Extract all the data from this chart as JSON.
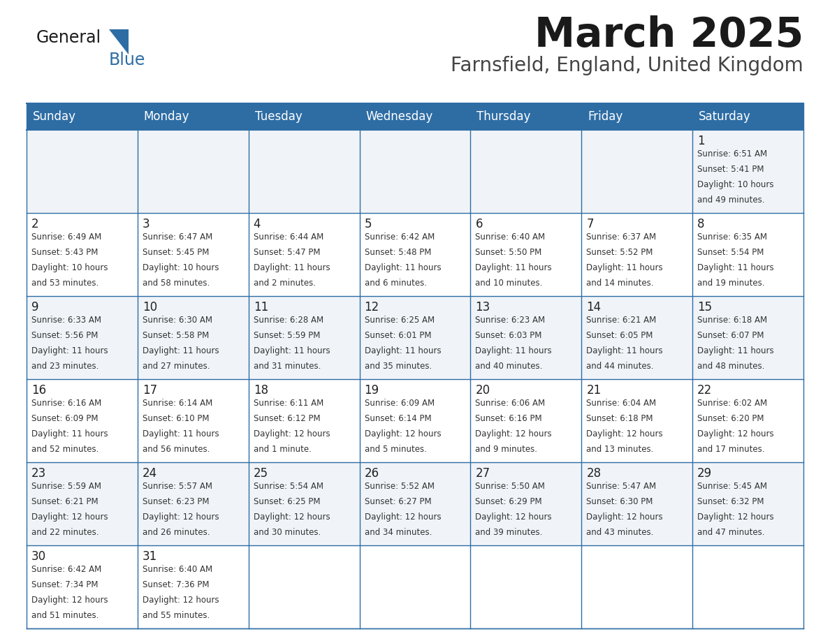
{
  "title": "March 2025",
  "subtitle": "Farnsfield, England, United Kingdom",
  "header_bg": "#2E6DA4",
  "header_text_color": "#FFFFFF",
  "cell_bg_light": "#F0F4F8",
  "cell_bg_white": "#FFFFFF",
  "border_color": "#2E6DA4",
  "day_names": [
    "Sunday",
    "Monday",
    "Tuesday",
    "Wednesday",
    "Thursday",
    "Friday",
    "Saturday"
  ],
  "title_color": "#1a1a1a",
  "subtitle_color": "#444444",
  "number_color": "#222222",
  "info_color": "#333333",
  "calendar": [
    [
      {
        "day": null,
        "sunrise": null,
        "sunset": null,
        "daylight_line1": null,
        "daylight_line2": null
      },
      {
        "day": null,
        "sunrise": null,
        "sunset": null,
        "daylight_line1": null,
        "daylight_line2": null
      },
      {
        "day": null,
        "sunrise": null,
        "sunset": null,
        "daylight_line1": null,
        "daylight_line2": null
      },
      {
        "day": null,
        "sunrise": null,
        "sunset": null,
        "daylight_line1": null,
        "daylight_line2": null
      },
      {
        "day": null,
        "sunrise": null,
        "sunset": null,
        "daylight_line1": null,
        "daylight_line2": null
      },
      {
        "day": null,
        "sunrise": null,
        "sunset": null,
        "daylight_line1": null,
        "daylight_line2": null
      },
      {
        "day": 1,
        "sunrise": "Sunrise: 6:51 AM",
        "sunset": "Sunset: 5:41 PM",
        "daylight_line1": "Daylight: 10 hours",
        "daylight_line2": "and 49 minutes."
      }
    ],
    [
      {
        "day": 2,
        "sunrise": "Sunrise: 6:49 AM",
        "sunset": "Sunset: 5:43 PM",
        "daylight_line1": "Daylight: 10 hours",
        "daylight_line2": "and 53 minutes."
      },
      {
        "day": 3,
        "sunrise": "Sunrise: 6:47 AM",
        "sunset": "Sunset: 5:45 PM",
        "daylight_line1": "Daylight: 10 hours",
        "daylight_line2": "and 58 minutes."
      },
      {
        "day": 4,
        "sunrise": "Sunrise: 6:44 AM",
        "sunset": "Sunset: 5:47 PM",
        "daylight_line1": "Daylight: 11 hours",
        "daylight_line2": "and 2 minutes."
      },
      {
        "day": 5,
        "sunrise": "Sunrise: 6:42 AM",
        "sunset": "Sunset: 5:48 PM",
        "daylight_line1": "Daylight: 11 hours",
        "daylight_line2": "and 6 minutes."
      },
      {
        "day": 6,
        "sunrise": "Sunrise: 6:40 AM",
        "sunset": "Sunset: 5:50 PM",
        "daylight_line1": "Daylight: 11 hours",
        "daylight_line2": "and 10 minutes."
      },
      {
        "day": 7,
        "sunrise": "Sunrise: 6:37 AM",
        "sunset": "Sunset: 5:52 PM",
        "daylight_line1": "Daylight: 11 hours",
        "daylight_line2": "and 14 minutes."
      },
      {
        "day": 8,
        "sunrise": "Sunrise: 6:35 AM",
        "sunset": "Sunset: 5:54 PM",
        "daylight_line1": "Daylight: 11 hours",
        "daylight_line2": "and 19 minutes."
      }
    ],
    [
      {
        "day": 9,
        "sunrise": "Sunrise: 6:33 AM",
        "sunset": "Sunset: 5:56 PM",
        "daylight_line1": "Daylight: 11 hours",
        "daylight_line2": "and 23 minutes."
      },
      {
        "day": 10,
        "sunrise": "Sunrise: 6:30 AM",
        "sunset": "Sunset: 5:58 PM",
        "daylight_line1": "Daylight: 11 hours",
        "daylight_line2": "and 27 minutes."
      },
      {
        "day": 11,
        "sunrise": "Sunrise: 6:28 AM",
        "sunset": "Sunset: 5:59 PM",
        "daylight_line1": "Daylight: 11 hours",
        "daylight_line2": "and 31 minutes."
      },
      {
        "day": 12,
        "sunrise": "Sunrise: 6:25 AM",
        "sunset": "Sunset: 6:01 PM",
        "daylight_line1": "Daylight: 11 hours",
        "daylight_line2": "and 35 minutes."
      },
      {
        "day": 13,
        "sunrise": "Sunrise: 6:23 AM",
        "sunset": "Sunset: 6:03 PM",
        "daylight_line1": "Daylight: 11 hours",
        "daylight_line2": "and 40 minutes."
      },
      {
        "day": 14,
        "sunrise": "Sunrise: 6:21 AM",
        "sunset": "Sunset: 6:05 PM",
        "daylight_line1": "Daylight: 11 hours",
        "daylight_line2": "and 44 minutes."
      },
      {
        "day": 15,
        "sunrise": "Sunrise: 6:18 AM",
        "sunset": "Sunset: 6:07 PM",
        "daylight_line1": "Daylight: 11 hours",
        "daylight_line2": "and 48 minutes."
      }
    ],
    [
      {
        "day": 16,
        "sunrise": "Sunrise: 6:16 AM",
        "sunset": "Sunset: 6:09 PM",
        "daylight_line1": "Daylight: 11 hours",
        "daylight_line2": "and 52 minutes."
      },
      {
        "day": 17,
        "sunrise": "Sunrise: 6:14 AM",
        "sunset": "Sunset: 6:10 PM",
        "daylight_line1": "Daylight: 11 hours",
        "daylight_line2": "and 56 minutes."
      },
      {
        "day": 18,
        "sunrise": "Sunrise: 6:11 AM",
        "sunset": "Sunset: 6:12 PM",
        "daylight_line1": "Daylight: 12 hours",
        "daylight_line2": "and 1 minute."
      },
      {
        "day": 19,
        "sunrise": "Sunrise: 6:09 AM",
        "sunset": "Sunset: 6:14 PM",
        "daylight_line1": "Daylight: 12 hours",
        "daylight_line2": "and 5 minutes."
      },
      {
        "day": 20,
        "sunrise": "Sunrise: 6:06 AM",
        "sunset": "Sunset: 6:16 PM",
        "daylight_line1": "Daylight: 12 hours",
        "daylight_line2": "and 9 minutes."
      },
      {
        "day": 21,
        "sunrise": "Sunrise: 6:04 AM",
        "sunset": "Sunset: 6:18 PM",
        "daylight_line1": "Daylight: 12 hours",
        "daylight_line2": "and 13 minutes."
      },
      {
        "day": 22,
        "sunrise": "Sunrise: 6:02 AM",
        "sunset": "Sunset: 6:20 PM",
        "daylight_line1": "Daylight: 12 hours",
        "daylight_line2": "and 17 minutes."
      }
    ],
    [
      {
        "day": 23,
        "sunrise": "Sunrise: 5:59 AM",
        "sunset": "Sunset: 6:21 PM",
        "daylight_line1": "Daylight: 12 hours",
        "daylight_line2": "and 22 minutes."
      },
      {
        "day": 24,
        "sunrise": "Sunrise: 5:57 AM",
        "sunset": "Sunset: 6:23 PM",
        "daylight_line1": "Daylight: 12 hours",
        "daylight_line2": "and 26 minutes."
      },
      {
        "day": 25,
        "sunrise": "Sunrise: 5:54 AM",
        "sunset": "Sunset: 6:25 PM",
        "daylight_line1": "Daylight: 12 hours",
        "daylight_line2": "and 30 minutes."
      },
      {
        "day": 26,
        "sunrise": "Sunrise: 5:52 AM",
        "sunset": "Sunset: 6:27 PM",
        "daylight_line1": "Daylight: 12 hours",
        "daylight_line2": "and 34 minutes."
      },
      {
        "day": 27,
        "sunrise": "Sunrise: 5:50 AM",
        "sunset": "Sunset: 6:29 PM",
        "daylight_line1": "Daylight: 12 hours",
        "daylight_line2": "and 39 minutes."
      },
      {
        "day": 28,
        "sunrise": "Sunrise: 5:47 AM",
        "sunset": "Sunset: 6:30 PM",
        "daylight_line1": "Daylight: 12 hours",
        "daylight_line2": "and 43 minutes."
      },
      {
        "day": 29,
        "sunrise": "Sunrise: 5:45 AM",
        "sunset": "Sunset: 6:32 PM",
        "daylight_line1": "Daylight: 12 hours",
        "daylight_line2": "and 47 minutes."
      }
    ],
    [
      {
        "day": 30,
        "sunrise": "Sunrise: 6:42 AM",
        "sunset": "Sunset: 7:34 PM",
        "daylight_line1": "Daylight: 12 hours",
        "daylight_line2": "and 51 minutes."
      },
      {
        "day": 31,
        "sunrise": "Sunrise: 6:40 AM",
        "sunset": "Sunset: 7:36 PM",
        "daylight_line1": "Daylight: 12 hours",
        "daylight_line2": "and 55 minutes."
      },
      {
        "day": null,
        "sunrise": null,
        "sunset": null,
        "daylight_line1": null,
        "daylight_line2": null
      },
      {
        "day": null,
        "sunrise": null,
        "sunset": null,
        "daylight_line1": null,
        "daylight_line2": null
      },
      {
        "day": null,
        "sunrise": null,
        "sunset": null,
        "daylight_line1": null,
        "daylight_line2": null
      },
      {
        "day": null,
        "sunrise": null,
        "sunset": null,
        "daylight_line1": null,
        "daylight_line2": null
      },
      {
        "day": null,
        "sunrise": null,
        "sunset": null,
        "daylight_line1": null,
        "daylight_line2": null
      }
    ]
  ]
}
